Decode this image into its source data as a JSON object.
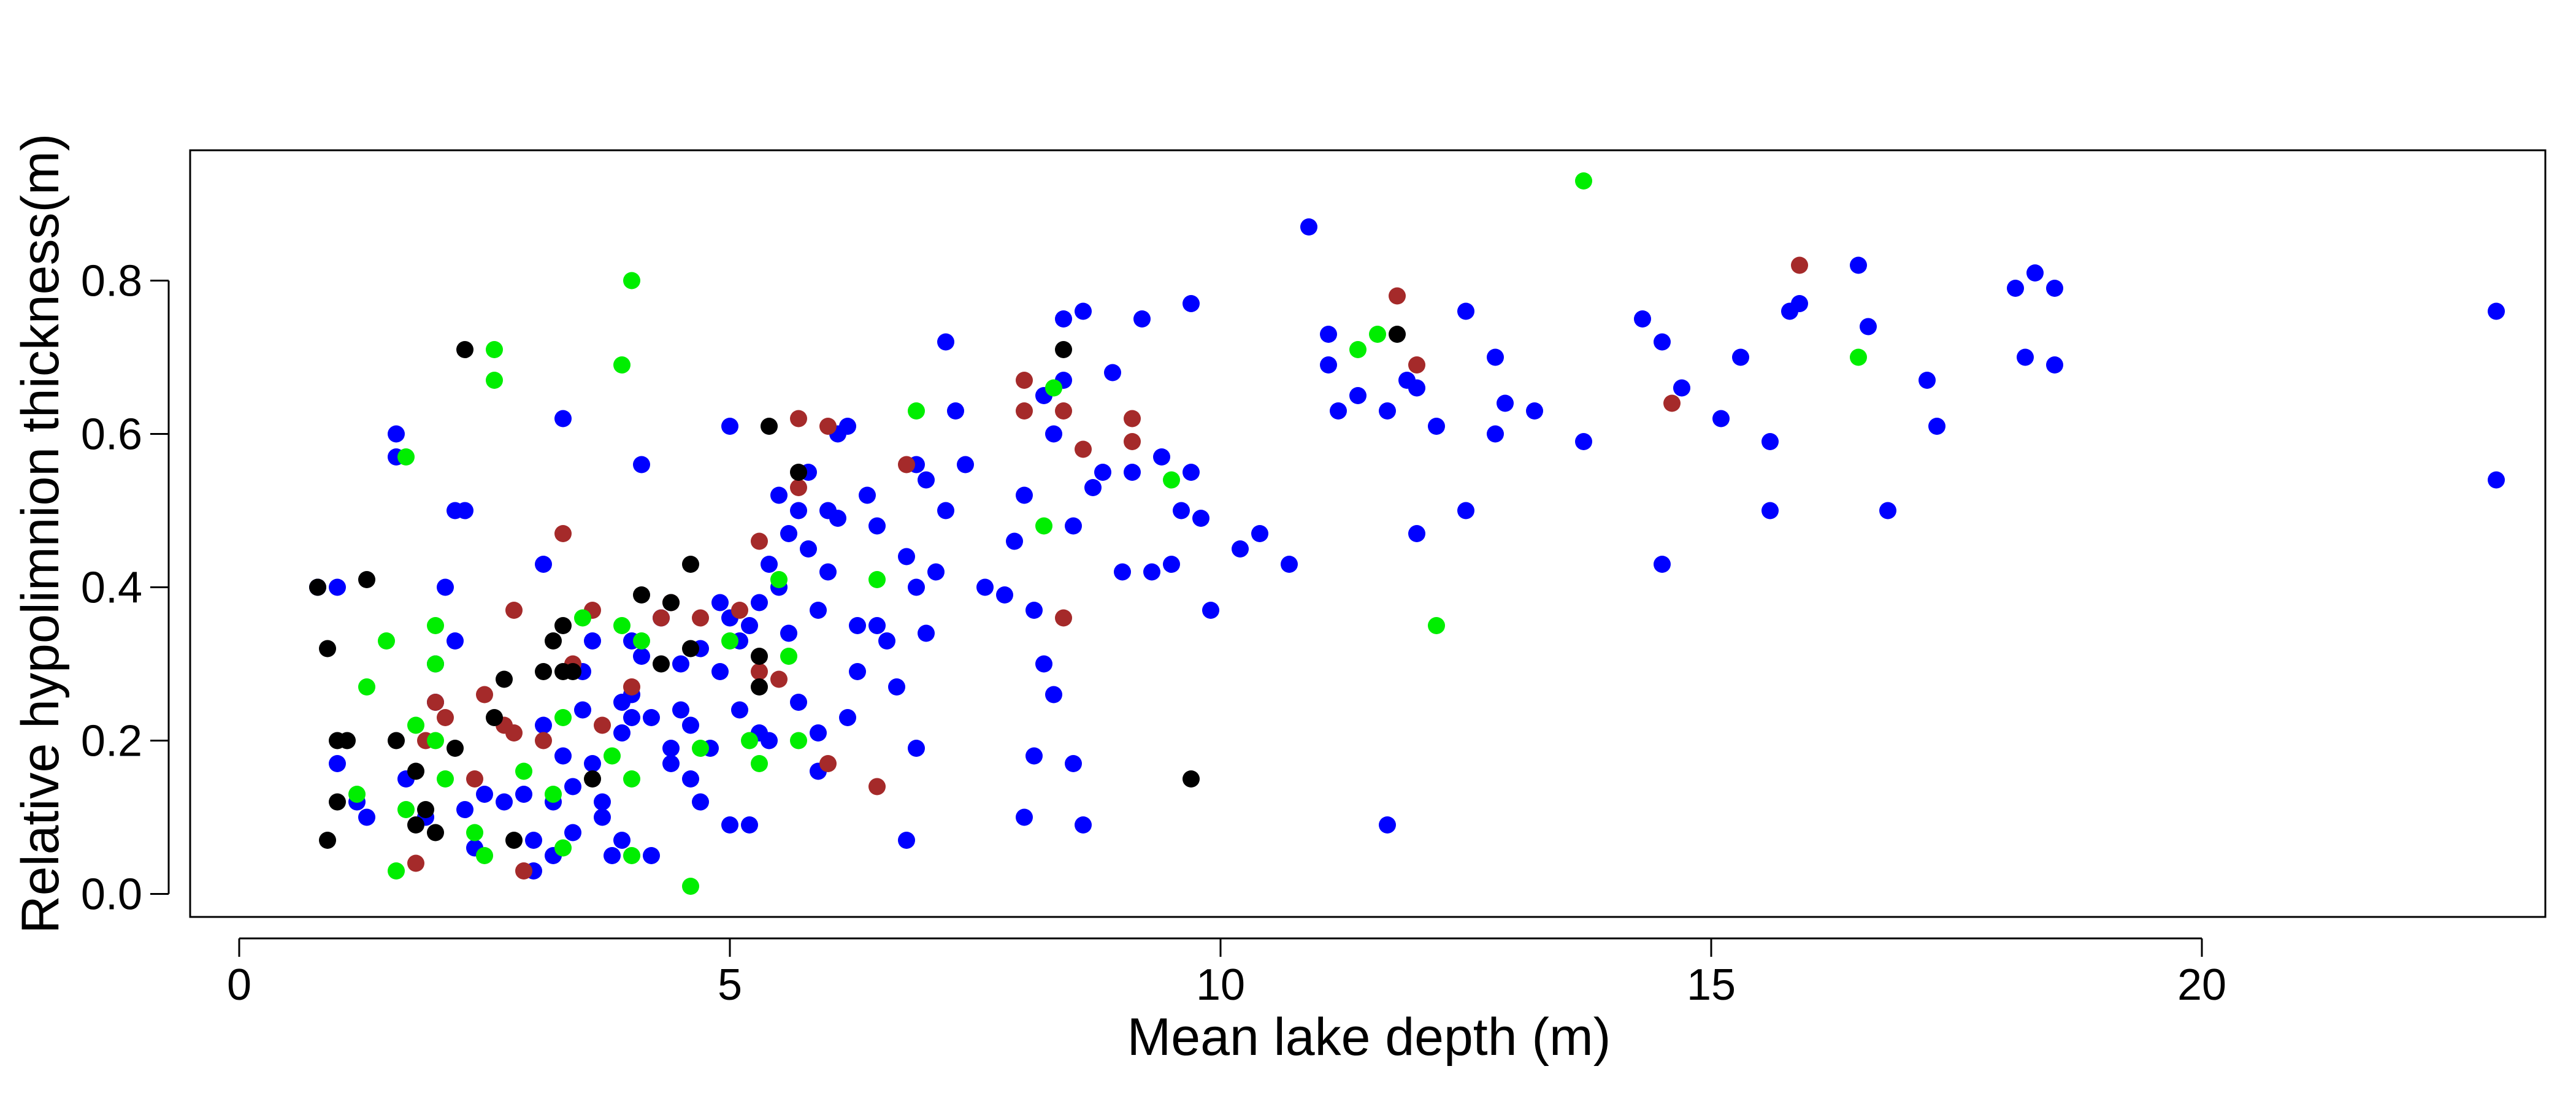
{
  "chart_data": {
    "type": "scatter",
    "title": "",
    "xlabel": "Mean lake depth (m)",
    "ylabel": "Relative hypolimnion thickness(m)",
    "xlim": [
      -0.5,
      23.5
    ],
    "ylim": [
      -0.03,
      0.97
    ],
    "xticks": [
      0,
      5,
      10,
      15,
      20
    ],
    "yticks": [
      0.0,
      0.2,
      0.4,
      0.6,
      0.8
    ],
    "xtick_labels": [
      "0",
      "5",
      "10",
      "15",
      "20"
    ],
    "ytick_labels": [
      "0.0",
      "0.2",
      "0.4",
      "0.6",
      "0.8"
    ],
    "grid": false,
    "legend": "none",
    "series": [
      {
        "color": "#0000ff",
        "points": [
          [
            0.8,
            0.4
          ],
          [
            1.0,
            0.4
          ],
          [
            1.0,
            0.17
          ],
          [
            1.2,
            0.12
          ],
          [
            1.3,
            0.1
          ],
          [
            1.6,
            0.57
          ],
          [
            1.6,
            0.6
          ],
          [
            1.7,
            0.15
          ],
          [
            1.9,
            0.1
          ],
          [
            2.0,
            0.25
          ],
          [
            2.0,
            0.3
          ],
          [
            2.1,
            0.4
          ],
          [
            2.2,
            0.33
          ],
          [
            2.2,
            0.5
          ],
          [
            2.3,
            0.5
          ],
          [
            2.3,
            0.11
          ],
          [
            2.4,
            0.06
          ],
          [
            2.5,
            0.13
          ],
          [
            2.7,
            0.12
          ],
          [
            2.9,
            0.13
          ],
          [
            3.0,
            0.03
          ],
          [
            3.0,
            0.07
          ],
          [
            3.1,
            0.43
          ],
          [
            3.1,
            0.22
          ],
          [
            3.2,
            0.12
          ],
          [
            3.2,
            0.05
          ],
          [
            3.3,
            0.62
          ],
          [
            3.3,
            0.18
          ],
          [
            3.4,
            0.14
          ],
          [
            3.4,
            0.08
          ],
          [
            3.5,
            0.29
          ],
          [
            3.5,
            0.24
          ],
          [
            3.6,
            0.33
          ],
          [
            3.7,
            0.1
          ],
          [
            3.7,
            0.12
          ],
          [
            3.8,
            0.05
          ],
          [
            3.9,
            0.25
          ],
          [
            3.9,
            0.21
          ],
          [
            4.0,
            0.33
          ],
          [
            4.0,
            0.26
          ],
          [
            4.0,
            0.23
          ],
          [
            4.1,
            0.56
          ],
          [
            4.1,
            0.31
          ],
          [
            4.2,
            0.23
          ],
          [
            4.3,
            0.36
          ],
          [
            4.4,
            0.17
          ],
          [
            4.5,
            0.3
          ],
          [
            4.5,
            0.24
          ],
          [
            4.6,
            0.22
          ],
          [
            4.6,
            0.15
          ],
          [
            4.7,
            0.32
          ],
          [
            4.7,
            0.12
          ],
          [
            4.8,
            0.19
          ],
          [
            4.9,
            0.38
          ],
          [
            4.9,
            0.29
          ],
          [
            5.0,
            0.61
          ],
          [
            5.0,
            0.36
          ],
          [
            5.1,
            0.33
          ],
          [
            5.1,
            0.24
          ],
          [
            5.2,
            0.35
          ],
          [
            5.2,
            0.09
          ],
          [
            5.3,
            0.38
          ],
          [
            5.4,
            0.43
          ],
          [
            5.4,
            0.2
          ],
          [
            5.5,
            0.52
          ],
          [
            5.5,
            0.4
          ],
          [
            5.6,
            0.47
          ],
          [
            5.6,
            0.34
          ],
          [
            5.7,
            0.5
          ],
          [
            5.7,
            0.25
          ],
          [
            5.8,
            0.45
          ],
          [
            5.8,
            0.55
          ],
          [
            5.9,
            0.37
          ],
          [
            5.9,
            0.16
          ],
          [
            6.0,
            0.5
          ],
          [
            6.0,
            0.42
          ],
          [
            6.1,
            0.49
          ],
          [
            6.1,
            0.6
          ],
          [
            6.2,
            0.61
          ],
          [
            6.3,
            0.35
          ],
          [
            6.3,
            0.29
          ],
          [
            6.4,
            0.52
          ],
          [
            6.5,
            0.48
          ],
          [
            6.5,
            0.35
          ],
          [
            6.6,
            0.33
          ],
          [
            6.7,
            0.27
          ],
          [
            6.8,
            0.44
          ],
          [
            6.8,
            0.07
          ],
          [
            6.9,
            0.56
          ],
          [
            6.9,
            0.4
          ],
          [
            7.0,
            0.54
          ],
          [
            7.0,
            0.34
          ],
          [
            7.1,
            0.42
          ],
          [
            7.2,
            0.72
          ],
          [
            7.2,
            0.5
          ],
          [
            7.3,
            0.63
          ],
          [
            7.4,
            0.56
          ],
          [
            7.6,
            0.4
          ],
          [
            7.9,
            0.46
          ],
          [
            8.0,
            0.52
          ],
          [
            8.1,
            0.37
          ],
          [
            8.1,
            0.18
          ],
          [
            8.2,
            0.65
          ],
          [
            8.2,
            0.3
          ],
          [
            8.3,
            0.26
          ],
          [
            8.3,
            0.6
          ],
          [
            8.4,
            0.75
          ],
          [
            8.4,
            0.67
          ],
          [
            8.5,
            0.48
          ],
          [
            8.5,
            0.17
          ],
          [
            8.6,
            0.76
          ],
          [
            8.6,
            0.09
          ],
          [
            8.7,
            0.53
          ],
          [
            8.8,
            0.55
          ],
          [
            8.9,
            0.68
          ],
          [
            9.0,
            0.42
          ],
          [
            9.1,
            0.55
          ],
          [
            9.2,
            0.75
          ],
          [
            9.3,
            0.42
          ],
          [
            9.4,
            0.57
          ],
          [
            9.5,
            0.43
          ],
          [
            9.6,
            0.5
          ],
          [
            9.7,
            0.77
          ],
          [
            9.7,
            0.55
          ],
          [
            9.8,
            0.49
          ],
          [
            9.9,
            0.37
          ],
          [
            10.2,
            0.45
          ],
          [
            10.4,
            0.47
          ],
          [
            10.7,
            0.43
          ],
          [
            10.9,
            0.87
          ],
          [
            11.1,
            0.73
          ],
          [
            11.1,
            0.69
          ],
          [
            11.2,
            0.63
          ],
          [
            11.4,
            0.65
          ],
          [
            11.7,
            0.09
          ],
          [
            11.7,
            0.63
          ],
          [
            11.9,
            0.67
          ],
          [
            12.0,
            0.66
          ],
          [
            12.0,
            0.47
          ],
          [
            12.2,
            0.61
          ],
          [
            12.5,
            0.76
          ],
          [
            12.5,
            0.5
          ],
          [
            12.8,
            0.7
          ],
          [
            12.8,
            0.6
          ],
          [
            12.9,
            0.64
          ],
          [
            13.2,
            0.63
          ],
          [
            13.7,
            0.59
          ],
          [
            14.3,
            0.75
          ],
          [
            14.5,
            0.43
          ],
          [
            14.5,
            0.72
          ],
          [
            14.7,
            0.66
          ],
          [
            15.1,
            0.62
          ],
          [
            15.3,
            0.7
          ],
          [
            15.6,
            0.59
          ],
          [
            15.6,
            0.5
          ],
          [
            15.8,
            0.76
          ],
          [
            15.9,
            0.77
          ],
          [
            16.5,
            0.82
          ],
          [
            16.6,
            0.74
          ],
          [
            16.8,
            0.5
          ],
          [
            17.2,
            0.67
          ],
          [
            17.3,
            0.61
          ],
          [
            18.1,
            0.79
          ],
          [
            18.3,
            0.81
          ],
          [
            18.2,
            0.7
          ],
          [
            18.5,
            0.69
          ],
          [
            18.5,
            0.79
          ],
          [
            23.0,
            0.76
          ],
          [
            23.0,
            0.54
          ],
          [
            3.6,
            0.17
          ],
          [
            4.2,
            0.05
          ],
          [
            5.3,
            0.21
          ],
          [
            6.9,
            0.19
          ],
          [
            8.0,
            0.1
          ],
          [
            5.0,
            0.09
          ],
          [
            5.9,
            0.21
          ],
          [
            4.4,
            0.19
          ],
          [
            3.9,
            0.07
          ],
          [
            6.2,
            0.23
          ],
          [
            7.8,
            0.39
          ]
        ]
      },
      {
        "color": "#a52a2a",
        "points": [
          [
            1.8,
            0.04
          ],
          [
            1.9,
            0.2
          ],
          [
            2.0,
            0.25
          ],
          [
            2.1,
            0.23
          ],
          [
            2.4,
            0.15
          ],
          [
            2.5,
            0.26
          ],
          [
            2.7,
            0.22
          ],
          [
            2.8,
            0.21
          ],
          [
            2.8,
            0.37
          ],
          [
            2.9,
            0.03
          ],
          [
            3.1,
            0.2
          ],
          [
            3.3,
            0.47
          ],
          [
            3.4,
            0.3
          ],
          [
            3.6,
            0.37
          ],
          [
            3.7,
            0.22
          ],
          [
            4.0,
            0.27
          ],
          [
            4.3,
            0.36
          ],
          [
            4.4,
            0.38
          ],
          [
            4.7,
            0.36
          ],
          [
            5.1,
            0.37
          ],
          [
            5.3,
            0.46
          ],
          [
            5.3,
            0.29
          ],
          [
            5.5,
            0.28
          ],
          [
            5.7,
            0.62
          ],
          [
            5.7,
            0.53
          ],
          [
            6.0,
            0.61
          ],
          [
            6.0,
            0.17
          ],
          [
            6.5,
            0.14
          ],
          [
            6.8,
            0.56
          ],
          [
            8.0,
            0.67
          ],
          [
            8.0,
            0.63
          ],
          [
            8.4,
            0.63
          ],
          [
            8.4,
            0.36
          ],
          [
            8.6,
            0.58
          ],
          [
            9.1,
            0.62
          ],
          [
            9.1,
            0.59
          ],
          [
            11.8,
            0.78
          ],
          [
            12.0,
            0.69
          ],
          [
            14.6,
            0.64
          ],
          [
            15.9,
            0.82
          ]
        ]
      },
      {
        "color": "#00ee00",
        "points": [
          [
            1.2,
            0.13
          ],
          [
            1.3,
            0.27
          ],
          [
            1.5,
            0.33
          ],
          [
            1.6,
            0.03
          ],
          [
            1.7,
            0.57
          ],
          [
            1.7,
            0.11
          ],
          [
            1.8,
            0.22
          ],
          [
            2.0,
            0.35
          ],
          [
            2.0,
            0.2
          ],
          [
            2.0,
            0.3
          ],
          [
            2.1,
            0.15
          ],
          [
            2.4,
            0.08
          ],
          [
            2.5,
            0.05
          ],
          [
            2.6,
            0.71
          ],
          [
            2.6,
            0.67
          ],
          [
            2.9,
            0.16
          ],
          [
            3.2,
            0.13
          ],
          [
            3.3,
            0.23
          ],
          [
            3.3,
            0.06
          ],
          [
            3.5,
            0.36
          ],
          [
            3.8,
            0.18
          ],
          [
            3.9,
            0.69
          ],
          [
            3.9,
            0.35
          ],
          [
            4.0,
            0.8
          ],
          [
            4.0,
            0.15
          ],
          [
            4.0,
            0.05
          ],
          [
            4.1,
            0.33
          ],
          [
            4.6,
            0.01
          ],
          [
            4.7,
            0.19
          ],
          [
            5.0,
            0.33
          ],
          [
            5.2,
            0.2
          ],
          [
            5.3,
            0.17
          ],
          [
            5.5,
            0.41
          ],
          [
            5.6,
            0.31
          ],
          [
            5.7,
            0.2
          ],
          [
            6.5,
            0.41
          ],
          [
            6.9,
            0.63
          ],
          [
            8.2,
            0.48
          ],
          [
            8.3,
            0.66
          ],
          [
            9.5,
            0.54
          ],
          [
            11.4,
            0.71
          ],
          [
            11.6,
            0.73
          ],
          [
            12.2,
            0.35
          ],
          [
            13.7,
            0.93
          ],
          [
            16.5,
            0.7
          ]
        ]
      },
      {
        "color": "#000000",
        "points": [
          [
            0.8,
            0.4
          ],
          [
            0.9,
            0.32
          ],
          [
            0.9,
            0.07
          ],
          [
            1.0,
            0.12
          ],
          [
            1.0,
            0.2
          ],
          [
            1.1,
            0.2
          ],
          [
            1.3,
            0.41
          ],
          [
            1.6,
            0.2
          ],
          [
            1.8,
            0.16
          ],
          [
            1.8,
            0.09
          ],
          [
            1.9,
            0.11
          ],
          [
            2.0,
            0.08
          ],
          [
            2.2,
            0.19
          ],
          [
            2.3,
            0.71
          ],
          [
            2.6,
            0.23
          ],
          [
            2.7,
            0.28
          ],
          [
            2.8,
            0.07
          ],
          [
            3.1,
            0.29
          ],
          [
            3.3,
            0.35
          ],
          [
            3.3,
            0.29
          ],
          [
            3.4,
            0.29
          ],
          [
            3.6,
            0.15
          ],
          [
            4.1,
            0.39
          ],
          [
            4.4,
            0.38
          ],
          [
            4.6,
            0.43
          ],
          [
            4.6,
            0.32
          ],
          [
            5.3,
            0.27
          ],
          [
            5.3,
            0.31
          ],
          [
            5.4,
            0.61
          ],
          [
            5.7,
            0.55
          ],
          [
            8.4,
            0.71
          ],
          [
            9.7,
            0.15
          ],
          [
            11.8,
            0.73
          ],
          [
            4.3,
            0.3
          ],
          [
            3.2,
            0.33
          ]
        ]
      }
    ]
  }
}
